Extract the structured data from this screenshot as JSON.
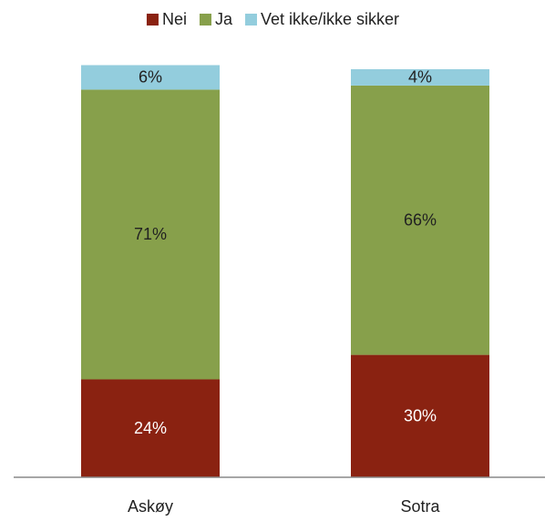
{
  "chart_data": {
    "type": "stacked_bar",
    "categories": [
      "Askøy",
      "Sotra"
    ],
    "series": [
      {
        "name": "Nei",
        "color": "#8a2211",
        "values": [
          24,
          30
        ],
        "value_labels": [
          "24%",
          "30%"
        ],
        "label_color": "#ffffff"
      },
      {
        "name": "Ja",
        "color": "#87a04b",
        "values": [
          71,
          66
        ],
        "value_labels": [
          "71%",
          "66%"
        ],
        "label_color": "#222222"
      },
      {
        "name": "Vet ikke/ikke sikker",
        "color": "#93cddd",
        "values": [
          6,
          4
        ],
        "value_labels": [
          "6%",
          "4%"
        ],
        "label_color": "#222222"
      }
    ],
    "ylim": [
      0,
      100
    ],
    "legend": "top"
  }
}
